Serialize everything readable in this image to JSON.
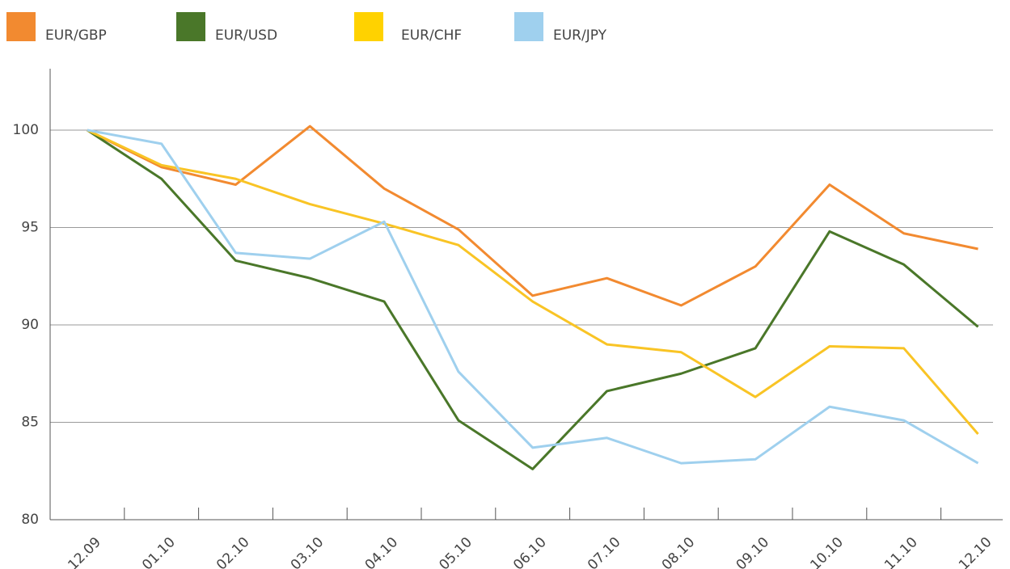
{
  "chart_data": {
    "type": "line",
    "categories": [
      "12.09",
      "01.10",
      "02.10",
      "03.10",
      "04.10",
      "05.10",
      "06.10",
      "07.10",
      "08.10",
      "09.10",
      "10.10",
      "11.10",
      "12.10"
    ],
    "series": [
      {
        "name": "EUR/GBP",
        "color": "#f28a30",
        "values": [
          100,
          98.1,
          97.2,
          100.2,
          97.0,
          94.9,
          91.5,
          92.4,
          91.0,
          93.0,
          97.2,
          94.7,
          93.9
        ]
      },
      {
        "name": "EUR/USD",
        "color": "#4a7729",
        "values": [
          100,
          97.5,
          93.3,
          92.4,
          91.2,
          85.1,
          82.6,
          86.6,
          87.5,
          88.8,
          94.8,
          93.1,
          89.9
        ]
      },
      {
        "name": "EUR/CHF",
        "color": "#f9c425",
        "legend_color": "#ffd200",
        "values": [
          100,
          98.2,
          97.5,
          96.2,
          95.2,
          94.1,
          91.2,
          89.0,
          88.6,
          86.3,
          88.9,
          88.8,
          84.4
        ]
      },
      {
        "name": "EUR/JPY",
        "color": "#9fd0ee",
        "values": [
          100,
          99.3,
          93.7,
          93.4,
          95.3,
          87.6,
          83.7,
          84.2,
          82.9,
          83.1,
          85.8,
          85.1,
          82.9
        ]
      }
    ],
    "ylim": [
      80,
      103
    ],
    "yticks": [
      80,
      85,
      90,
      95,
      100
    ],
    "grid": true
  }
}
